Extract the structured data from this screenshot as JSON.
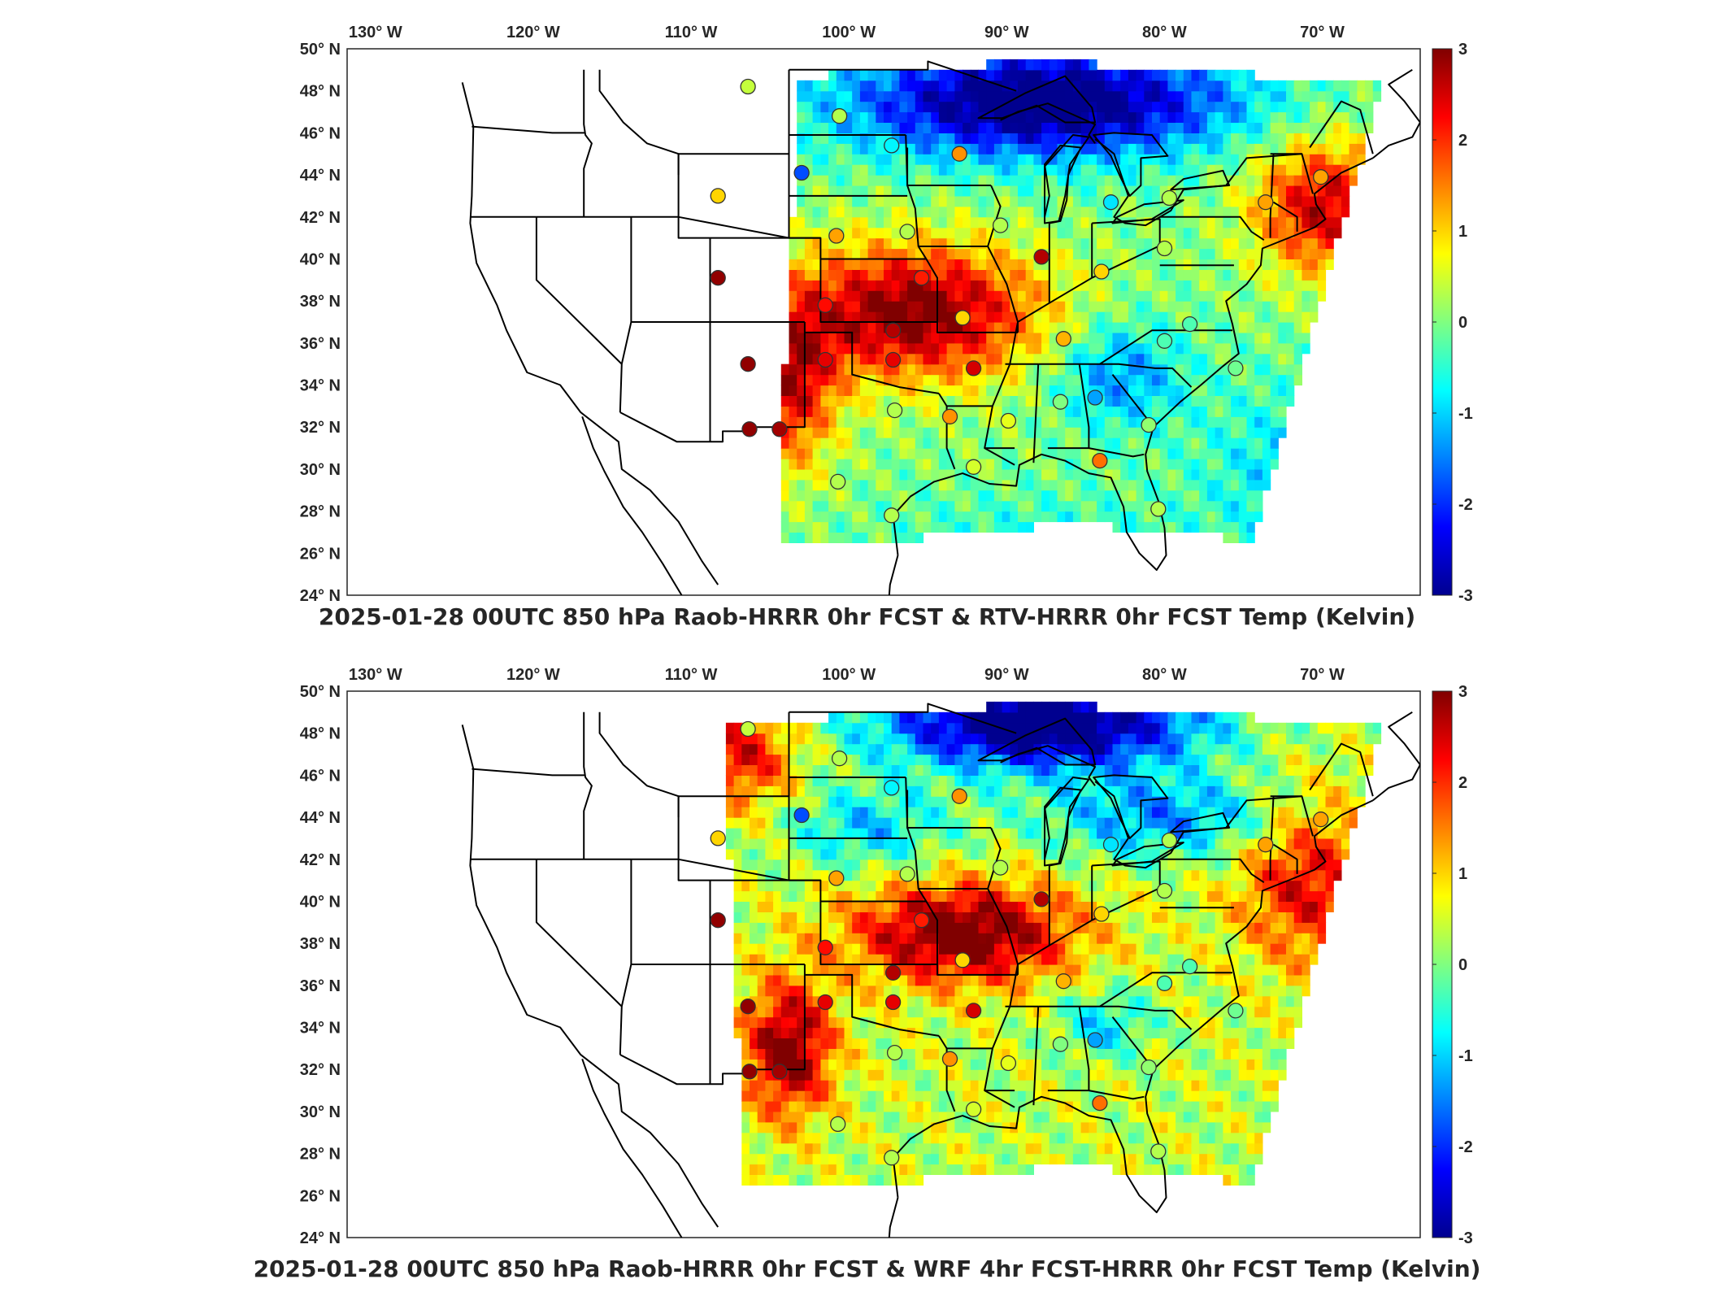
{
  "panels": [
    {
      "id": "top",
      "title": "2025-01-28 00UTC 850 hPa Raob-HRRR 0hr FCST & RTV-HRRR 0hr FCST Temp (Kelvin)"
    },
    {
      "id": "bottom",
      "title": "2025-01-28 00UTC 850 hPa Raob-HRRR 0hr FCST & WRF 4hr FCST-HRRR 0hr FCST Temp (Kelvin)"
    }
  ],
  "longitude_labels": [
    "130° W",
    "120° W",
    "110° W",
    "100° W",
    "90° W",
    "80° W",
    "70° W"
  ],
  "latitude_labels": [
    "50° N",
    "48° N",
    "46° N",
    "44° N",
    "42° N",
    "40° N",
    "38° N",
    "36° N",
    "34° N",
    "32° N",
    "30° N",
    "28° N",
    "26° N",
    "24° N"
  ],
  "colorbar": {
    "min": -3,
    "max": 3,
    "tick_labels": [
      "3",
      "2",
      "1",
      "0",
      "-1",
      "-2",
      "-3"
    ],
    "colormap": [
      "#00008f",
      "#0000ff",
      "#0080ff",
      "#00ffff",
      "#80ff80",
      "#ffff00",
      "#ff8000",
      "#ff0000",
      "#800000"
    ]
  },
  "chart_data": [
    {
      "type": "heatmap",
      "title": "2025-01-28 00UTC 850 hPa Raob-HRRR 0hr FCST & RTV-HRRR 0hr FCST Temp (Kelvin)",
      "xlim": [
        -132,
        -64
      ],
      "ylim": [
        24,
        50
      ],
      "stations": [
        {
          "lon": -106.6,
          "lat": 48.2,
          "v": 0.4
        },
        {
          "lon": -100.8,
          "lat": 46.8,
          "v": 0.3
        },
        {
          "lon": -97.5,
          "lat": 45.4,
          "v": -0.8
        },
        {
          "lon": -93.2,
          "lat": 45.0,
          "v": 1.4
        },
        {
          "lon": -103.2,
          "lat": 44.1,
          "v": -1.8
        },
        {
          "lon": -108.5,
          "lat": 43.0,
          "v": 1.0
        },
        {
          "lon": -101.0,
          "lat": 41.1,
          "v": 1.3
        },
        {
          "lon": -96.5,
          "lat": 41.3,
          "v": 0.3
        },
        {
          "lon": -90.6,
          "lat": 41.6,
          "v": 0.3
        },
        {
          "lon": -88.0,
          "lat": 40.1,
          "v": 2.7
        },
        {
          "lon": -83.6,
          "lat": 42.7,
          "v": -0.9
        },
        {
          "lon": -79.9,
          "lat": 42.9,
          "v": 0.3
        },
        {
          "lon": -73.8,
          "lat": 42.7,
          "v": 1.3
        },
        {
          "lon": -70.3,
          "lat": 43.9,
          "v": 1.3
        },
        {
          "lon": -80.2,
          "lat": 40.5,
          "v": 0.3
        },
        {
          "lon": -84.2,
          "lat": 39.4,
          "v": 1.0
        },
        {
          "lon": -95.6,
          "lat": 39.1,
          "v": 2.1
        },
        {
          "lon": -108.5,
          "lat": 39.1,
          "v": 2.9
        },
        {
          "lon": -101.7,
          "lat": 37.8,
          "v": 2.2
        },
        {
          "lon": -97.4,
          "lat": 36.6,
          "v": 2.7
        },
        {
          "lon": -93.0,
          "lat": 37.2,
          "v": 1.0
        },
        {
          "lon": -86.6,
          "lat": 36.2,
          "v": 1.2
        },
        {
          "lon": -80.2,
          "lat": 36.1,
          "v": -0.3
        },
        {
          "lon": -78.6,
          "lat": 36.9,
          "v": -0.3
        },
        {
          "lon": -106.6,
          "lat": 35.0,
          "v": 2.9
        },
        {
          "lon": -101.7,
          "lat": 35.2,
          "v": 2.4
        },
        {
          "lon": -97.4,
          "lat": 35.2,
          "v": 2.4
        },
        {
          "lon": -92.3,
          "lat": 34.8,
          "v": 2.5
        },
        {
          "lon": -75.7,
          "lat": 34.8,
          "v": -0.1
        },
        {
          "lon": -86.8,
          "lat": 33.2,
          "v": 0.0
        },
        {
          "lon": -84.6,
          "lat": 33.4,
          "v": -1.3
        },
        {
          "lon": -97.3,
          "lat": 32.8,
          "v": 0.3
        },
        {
          "lon": -93.8,
          "lat": 32.5,
          "v": 1.4
        },
        {
          "lon": -90.1,
          "lat": 32.3,
          "v": 0.6
        },
        {
          "lon": -81.2,
          "lat": 32.1,
          "v": 0.1
        },
        {
          "lon": -106.5,
          "lat": 31.9,
          "v": 2.9
        },
        {
          "lon": -104.6,
          "lat": 31.9,
          "v": 2.8
        },
        {
          "lon": -92.3,
          "lat": 30.1,
          "v": 0.5
        },
        {
          "lon": -84.3,
          "lat": 30.4,
          "v": 1.6
        },
        {
          "lon": -100.9,
          "lat": 29.4,
          "v": 0.3
        },
        {
          "lon": -97.5,
          "lat": 27.8,
          "v": 0.3
        },
        {
          "lon": -80.6,
          "lat": 28.1,
          "v": 0.3
        }
      ]
    },
    {
      "type": "heatmap",
      "title": "2025-01-28 00UTC 850 hPa Raob-HRRR 0hr FCST & WRF 4hr FCST-HRRR 0hr FCST Temp (Kelvin)",
      "xlim": [
        -132,
        -64
      ],
      "ylim": [
        24,
        50
      ],
      "stations": "same as top panel"
    }
  ]
}
